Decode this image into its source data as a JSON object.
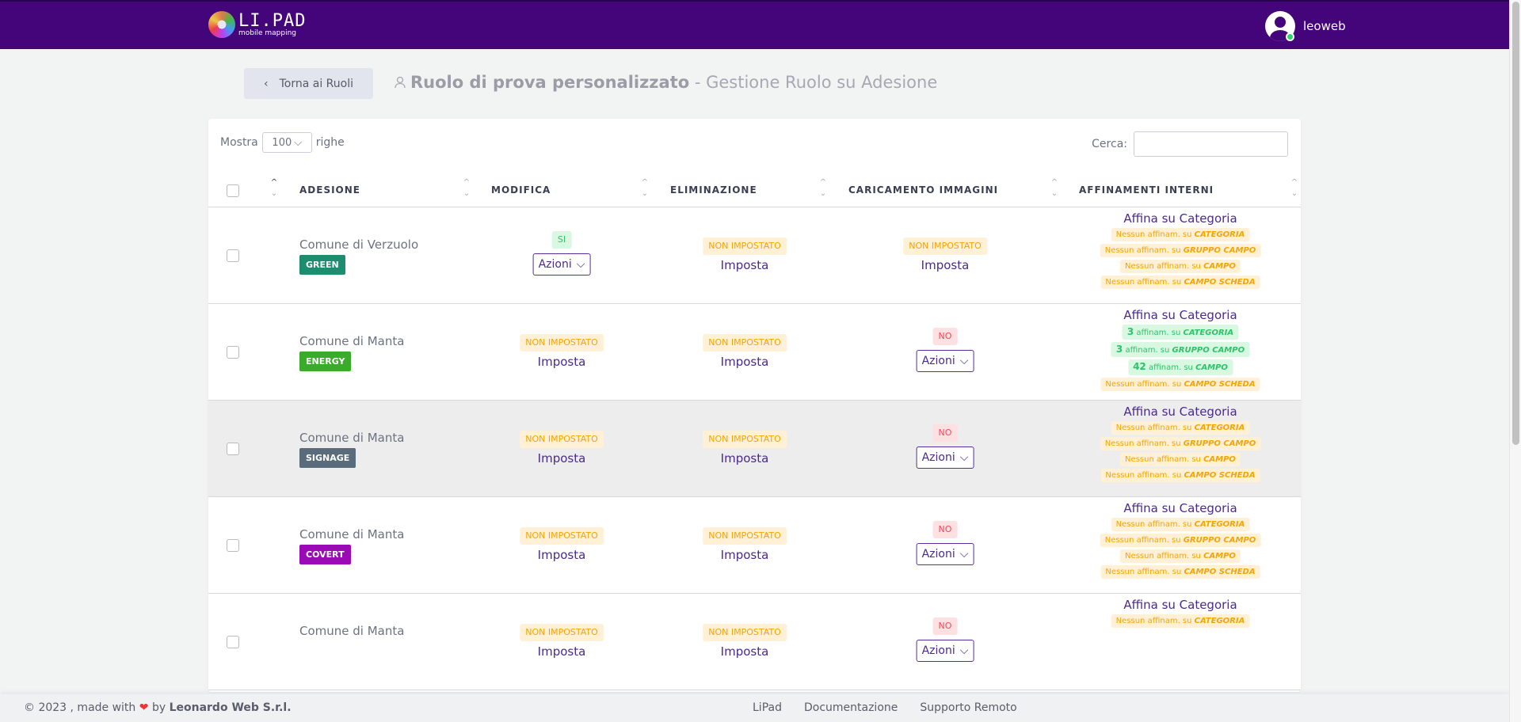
{
  "header": {
    "logo_text": "LI.PAD",
    "logo_subtitle": "mobile mapping",
    "username": "leoweb",
    "bg_color": "#44057a"
  },
  "page": {
    "back_label": "Torna ai Ruoli",
    "title_bold": "Ruolo di prova personalizzato",
    "title_rest": " - Gestione Ruolo su Adesione"
  },
  "table_controls": {
    "show_label": "Mostra",
    "rows_value": "100",
    "rows_label": "righe",
    "search_label": "Cerca:",
    "search_value": ""
  },
  "columns": [
    "ADESIONE",
    "MODIFICA",
    "ELIMINAZIONE",
    "CARICAMENTO IMMAGINI",
    "AFFINAMENTI INTERNI"
  ],
  "labels": {
    "not_set": "NON IMPOSTATO",
    "set": "Imposta",
    "actions": "Azioni",
    "refine": "Affina su Categoria",
    "none_prefix": "Nessun affinam. su",
    "count_suffix": "affinam. su"
  },
  "rows": [
    {
      "name": "Comune di Verzuolo",
      "tag": "GREEN",
      "tag_color": "#1e8c6e",
      "modifica": "SI",
      "eliminazione": "NON IMPOSTATO",
      "caricamento": "NON IMPOSTATO",
      "highlighted": false,
      "affinamenti": [
        {
          "count": null,
          "target": "CATEGORIA"
        },
        {
          "count": null,
          "target": "GRUPPO CAMPO"
        },
        {
          "count": null,
          "target": "CAMPO"
        },
        {
          "count": null,
          "target": "CAMPO SCHEDA"
        }
      ]
    },
    {
      "name": "Comune di Manta",
      "tag": "ENERGY",
      "tag_color": "#3aab2a",
      "modifica": "NON IMPOSTATO",
      "eliminazione": "NON IMPOSTATO",
      "caricamento": "NO",
      "highlighted": false,
      "affinamenti": [
        {
          "count": "3",
          "target": "CATEGORIA"
        },
        {
          "count": "3",
          "target": "GRUPPO CAMPO"
        },
        {
          "count": "42",
          "target": "CAMPO"
        },
        {
          "count": null,
          "target": "CAMPO SCHEDA"
        }
      ]
    },
    {
      "name": "Comune di Manta",
      "tag": "SIGNAGE",
      "tag_color": "#5a6b7b",
      "modifica": "NON IMPOSTATO",
      "eliminazione": "NON IMPOSTATO",
      "caricamento": "NO",
      "highlighted": true,
      "affinamenti": [
        {
          "count": null,
          "target": "CATEGORIA"
        },
        {
          "count": null,
          "target": "GRUPPO CAMPO"
        },
        {
          "count": null,
          "target": "CAMPO"
        },
        {
          "count": null,
          "target": "CAMPO SCHEDA"
        }
      ]
    },
    {
      "name": "Comune di Manta",
      "tag": "COVERT",
      "tag_color": "#9b0bb5",
      "modifica": "NON IMPOSTATO",
      "eliminazione": "NON IMPOSTATO",
      "caricamento": "NO",
      "highlighted": false,
      "affinamenti": [
        {
          "count": null,
          "target": "CATEGORIA"
        },
        {
          "count": null,
          "target": "GRUPPO CAMPO"
        },
        {
          "count": null,
          "target": "CAMPO"
        },
        {
          "count": null,
          "target": "CAMPO SCHEDA"
        }
      ]
    },
    {
      "name": "Comune di Manta",
      "tag": "",
      "tag_color": "#5a6b7b",
      "modifica": "NON IMPOSTATO",
      "eliminazione": "NON IMPOSTATO",
      "caricamento": "NO",
      "highlighted": false,
      "affinamenti": [
        {
          "count": null,
          "target": "CATEGORIA"
        }
      ]
    }
  ],
  "footer": {
    "copyright": "© 2023 , made with",
    "by": "by",
    "company": "Leonardo Web S.r.l.",
    "links": [
      "LiPad",
      "Documentazione",
      "Supporto Remoto"
    ]
  }
}
